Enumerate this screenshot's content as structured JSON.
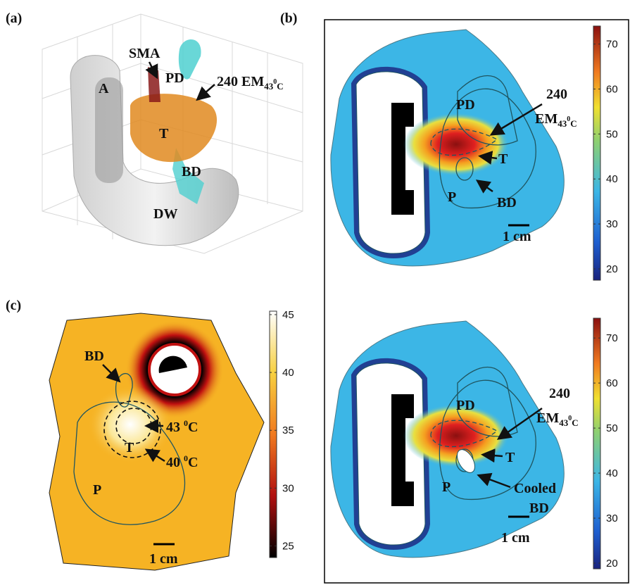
{
  "panel_a": {
    "label": "(a)",
    "sma": "SMA",
    "pd": "PD",
    "em_num": "240",
    "em_main": "EM",
    "em_sub": "43",
    "em_sup": "0",
    "em_tail": "C",
    "a": "A",
    "t": "T",
    "bd": "BD",
    "dw": "DW"
  },
  "panel_b": {
    "label": "(b)",
    "top": {
      "pd": "PD",
      "em_num": "240",
      "em_main": "EM",
      "em_sub": "43",
      "em_sup": "0",
      "em_tail": "C",
      "t": "T",
      "p": "P",
      "bd": "BD",
      "scale": "1 cm",
      "colorbar": {
        "lim": [
          17.5,
          74
        ],
        "ticks": [
          20,
          30,
          40,
          50,
          60,
          70
        ]
      }
    },
    "bottom": {
      "pd": "PD",
      "em_num": "240",
      "em_main": "EM",
      "em_sub": "43",
      "em_sup": "0",
      "em_tail": "C",
      "t": "T",
      "p": "P",
      "bd_1": "Cooled",
      "bd_2": "BD",
      "scale": "1 cm",
      "colorbar": {
        "lim": [
          18.75,
          74.4
        ],
        "ticks": [
          20,
          30,
          40,
          50,
          60,
          70
        ]
      }
    }
  },
  "panel_c": {
    "label": "(c)",
    "bd": "BD",
    "t43": "43",
    "t43_sup": "0",
    "t43_unit": "C",
    "t": "T",
    "t40": "40",
    "t40_sup": "0",
    "t40_unit": "C",
    "p": "P",
    "scale": "1 cm",
    "colorbar": {
      "lim": [
        24,
        45.3
      ],
      "ticks": [
        25,
        30,
        35,
        40,
        45
      ]
    }
  }
}
